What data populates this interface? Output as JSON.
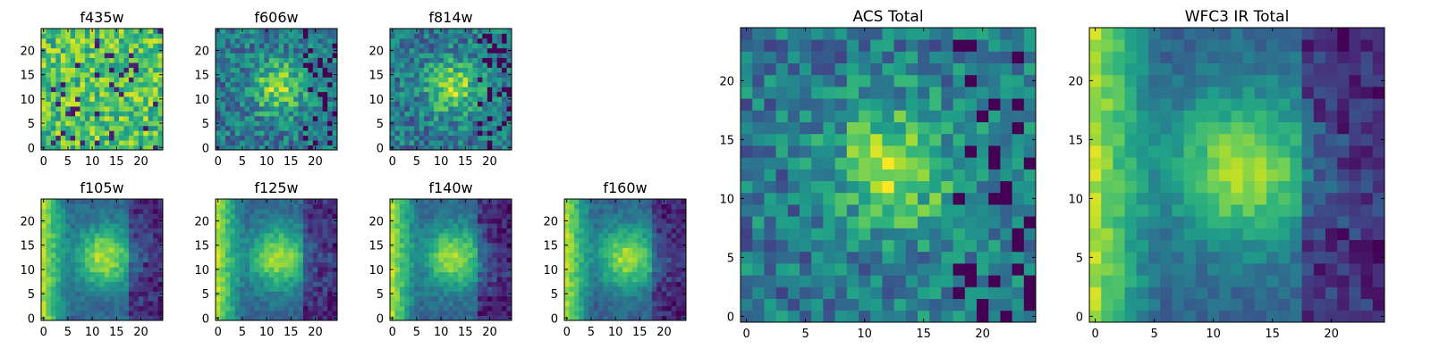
{
  "chart_data": [
    {
      "type": "heatmap",
      "title": "f435w",
      "xticks": [
        "0",
        "5",
        "10",
        "15",
        "20"
      ],
      "yticks": [
        "0",
        "5",
        "10",
        "15",
        "20"
      ],
      "xlim": [
        0,
        24
      ],
      "ylim": [
        0,
        24
      ],
      "colormap": "viridis",
      "pattern": "noise",
      "seed": 11
    },
    {
      "type": "heatmap",
      "title": "f606w",
      "xticks": [
        "0",
        "5",
        "10",
        "15",
        "20"
      ],
      "yticks": [
        "0",
        "5",
        "10",
        "15",
        "20"
      ],
      "xlim": [
        0,
        24
      ],
      "ylim": [
        0,
        24
      ],
      "colormap": "viridis",
      "pattern": "blob",
      "seed": 23
    },
    {
      "type": "heatmap",
      "title": "f814w",
      "xticks": [
        "0",
        "5",
        "10",
        "15",
        "20"
      ],
      "yticks": [
        "0",
        "5",
        "10",
        "15",
        "20"
      ],
      "xlim": [
        0,
        24
      ],
      "ylim": [
        0,
        24
      ],
      "colormap": "viridis",
      "pattern": "blob",
      "seed": 37
    },
    {
      "type": "heatmap",
      "title": "f105w",
      "xticks": [
        "0",
        "5",
        "10",
        "15",
        "20"
      ],
      "yticks": [
        "0",
        "5",
        "10",
        "15",
        "20"
      ],
      "xlim": [
        0,
        24
      ],
      "ylim": [
        0,
        24
      ],
      "colormap": "viridis",
      "pattern": "ir",
      "seed": 41
    },
    {
      "type": "heatmap",
      "title": "f125w",
      "xticks": [
        "0",
        "5",
        "10",
        "15",
        "20"
      ],
      "yticks": [
        "0",
        "5",
        "10",
        "15",
        "20"
      ],
      "xlim": [
        0,
        24
      ],
      "ylim": [
        0,
        24
      ],
      "colormap": "viridis",
      "pattern": "ir",
      "seed": 53
    },
    {
      "type": "heatmap",
      "title": "f140w",
      "xticks": [
        "0",
        "5",
        "10",
        "15",
        "20"
      ],
      "yticks": [
        "0",
        "5",
        "10",
        "15",
        "20"
      ],
      "xlim": [
        0,
        24
      ],
      "ylim": [
        0,
        24
      ],
      "colormap": "viridis",
      "pattern": "ir",
      "seed": 67
    },
    {
      "type": "heatmap",
      "title": "f160w",
      "xticks": [
        "0",
        "5",
        "10",
        "15",
        "20"
      ],
      "yticks": [
        "0",
        "5",
        "10",
        "15",
        "20"
      ],
      "xlim": [
        0,
        24
      ],
      "ylim": [
        0,
        24
      ],
      "colormap": "viridis",
      "pattern": "ir",
      "seed": 79
    },
    {
      "type": "heatmap",
      "title": "ACS Total",
      "xticks": [
        "0",
        "5",
        "10",
        "15",
        "20"
      ],
      "yticks": [
        "0",
        "5",
        "10",
        "15",
        "20"
      ],
      "xlim": [
        0,
        24
      ],
      "ylim": [
        0,
        24
      ],
      "colormap": "viridis",
      "pattern": "blob",
      "seed": 89
    },
    {
      "type": "heatmap",
      "title": "WFC3 IR Total",
      "xticks": [
        "0",
        "5",
        "10",
        "15",
        "20"
      ],
      "yticks": [
        "0",
        "5",
        "10",
        "15",
        "20"
      ],
      "xlim": [
        0,
        24
      ],
      "ylim": [
        0,
        24
      ],
      "colormap": "viridis",
      "pattern": "ir",
      "seed": 97
    }
  ]
}
